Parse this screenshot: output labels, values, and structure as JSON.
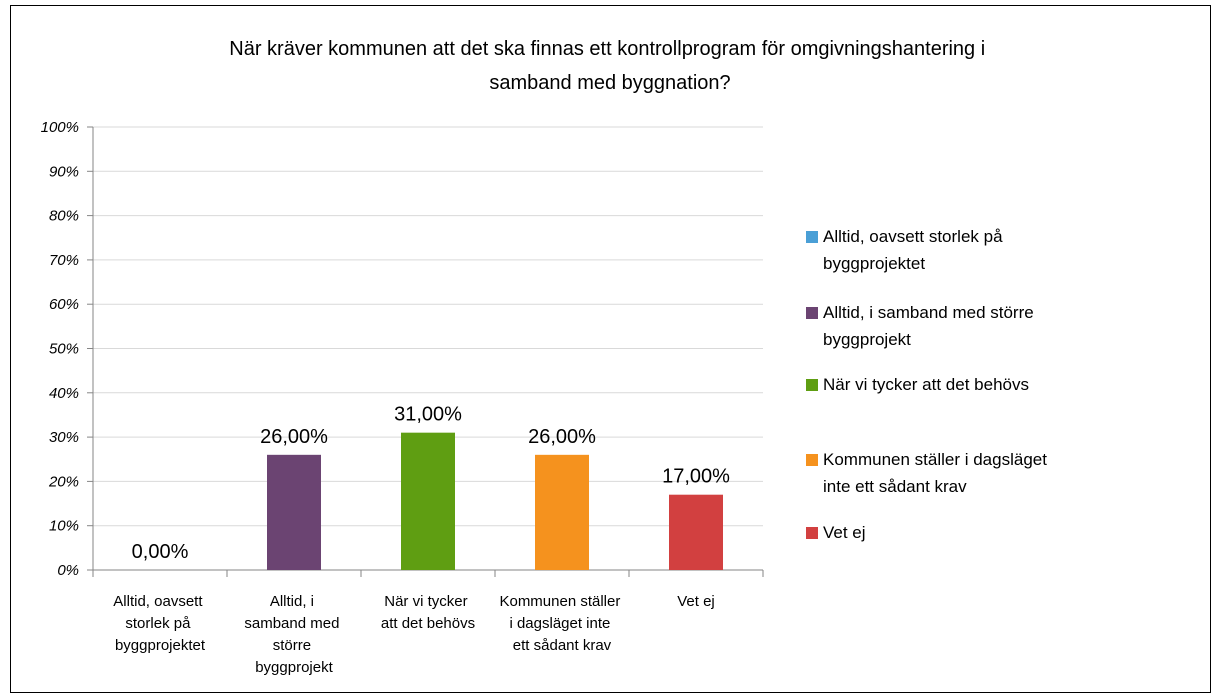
{
  "chart_data": {
    "type": "bar",
    "title": "När kräver kommunen att det ska finnas ett kontrollprogram för omgivningshantering i samband med byggnation?",
    "categories": [
      "Alltid, oavsett storlek på byggprojektet",
      "Alltid, i samband med större byggprojekt",
      "När vi tycker att det behövs",
      "Kommunen ställer i dagsläget inte ett sådant krav",
      "Vet ej"
    ],
    "values": [
      0,
      26,
      31,
      26,
      17
    ],
    "value_labels": [
      "0,00%",
      "26,00%",
      "31,00%",
      "26,00%",
      "17,00%"
    ],
    "colors": [
      "#4a9fd6",
      "#6b4472",
      "#5f9e12",
      "#f5921e",
      "#d24040"
    ],
    "ylim": [
      0,
      100
    ],
    "yticks": [
      {
        "value": 0,
        "label": "0%"
      },
      {
        "value": 10,
        "label": "10%"
      },
      {
        "value": 20,
        "label": "20%"
      },
      {
        "value": 30,
        "label": "30%"
      },
      {
        "value": 40,
        "label": "40%"
      },
      {
        "value": 50,
        "label": "50%"
      },
      {
        "value": 60,
        "label": "60%"
      },
      {
        "value": 70,
        "label": "70%"
      },
      {
        "value": 80,
        "label": "80%"
      },
      {
        "value": 90,
        "label": "90%"
      },
      {
        "value": 100,
        "label": "100%"
      }
    ],
    "grid": true,
    "legend": "right"
  }
}
